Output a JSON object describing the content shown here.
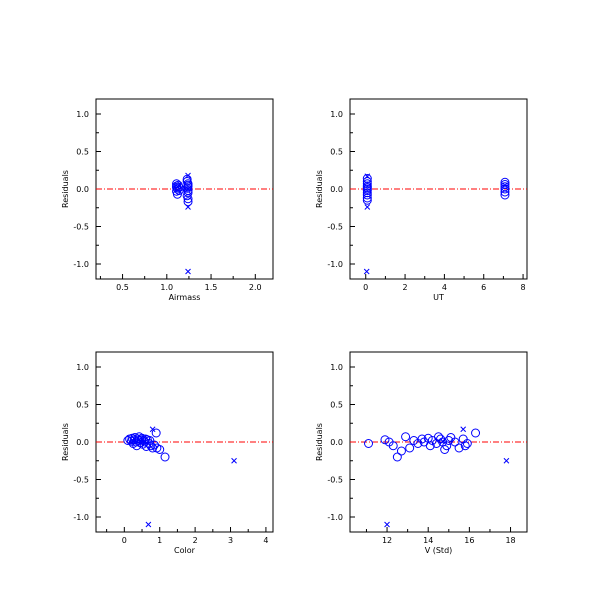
{
  "colors": {
    "axis": "#000000",
    "points": "#0000ff",
    "zero_line": "#ff0000",
    "background": "#ffffff"
  },
  "chart_data": [
    {
      "type": "scatter",
      "xlabel": "Airmass",
      "ylabel": "Residuals",
      "xlim": [
        0.2,
        2.2
      ],
      "ylim": [
        -1.2,
        1.2
      ],
      "xticks": [
        0.5,
        1.0,
        1.5,
        2.0
      ],
      "xtick_labels": [
        "0.5",
        "1.0",
        "1.5",
        "2.0"
      ],
      "yticks": [
        -1.0,
        -0.5,
        0.0,
        0.5,
        1.0
      ],
      "ytick_labels": [
        "-1.0",
        "-0.5",
        "0.0",
        "0.5",
        "1.0"
      ],
      "reference_line_y": 0.0,
      "series": [
        {
          "marker": "circle",
          "points": [
            [
              1.11,
              0.07
            ],
            [
              1.11,
              0.04
            ],
            [
              1.11,
              0.02
            ],
            [
              1.12,
              0.0
            ],
            [
              1.11,
              -0.03
            ],
            [
              1.12,
              -0.07
            ],
            [
              1.13,
              0.05
            ],
            [
              1.14,
              0.02
            ],
            [
              1.14,
              -0.02
            ],
            [
              1.23,
              0.13
            ],
            [
              1.23,
              0.1
            ],
            [
              1.24,
              0.07
            ],
            [
              1.24,
              0.05
            ],
            [
              1.24,
              0.03
            ],
            [
              1.23,
              0.01
            ],
            [
              1.24,
              -0.02
            ],
            [
              1.24,
              -0.05
            ],
            [
              1.23,
              -0.09
            ],
            [
              1.24,
              -0.13
            ],
            [
              1.24,
              -0.17
            ]
          ]
        },
        {
          "marker": "x",
          "points": [
            [
              1.24,
              0.18
            ],
            [
              1.24,
              -0.24
            ],
            [
              1.24,
              -1.1
            ],
            [
              1.12,
              0.03
            ],
            [
              1.24,
              0.0
            ]
          ]
        }
      ]
    },
    {
      "type": "scatter",
      "xlabel": "UT",
      "ylabel": "Residuals",
      "xlim": [
        -0.8,
        8.2
      ],
      "ylim": [
        -1.2,
        1.2
      ],
      "xticks": [
        0,
        2,
        4,
        6,
        8
      ],
      "xtick_labels": [
        "0",
        "2",
        "4",
        "6",
        "8"
      ],
      "yticks": [
        -1.0,
        -0.5,
        0.0,
        0.5,
        1.0
      ],
      "ytick_labels": [
        "-1.0",
        "-0.5",
        "0.0",
        "0.5",
        "1.0"
      ],
      "reference_line_y": 0.0,
      "series": [
        {
          "marker": "circle",
          "points": [
            [
              0.08,
              0.14
            ],
            [
              0.08,
              0.1
            ],
            [
              0.08,
              0.07
            ],
            [
              0.08,
              0.04
            ],
            [
              0.08,
              0.02
            ],
            [
              0.08,
              0.0
            ],
            [
              0.08,
              -0.02
            ],
            [
              0.08,
              -0.05
            ],
            [
              0.08,
              -0.08
            ],
            [
              0.08,
              -0.12
            ],
            [
              0.08,
              -0.15
            ],
            [
              7.08,
              0.09
            ],
            [
              7.08,
              0.06
            ],
            [
              7.08,
              0.03
            ],
            [
              7.08,
              0.0
            ],
            [
              7.08,
              -0.04
            ],
            [
              7.08,
              -0.08
            ]
          ]
        },
        {
          "marker": "x",
          "points": [
            [
              0.08,
              -0.24
            ],
            [
              0.08,
              0.17
            ],
            [
              0.05,
              -1.1
            ],
            [
              7.08,
              0.05
            ]
          ]
        }
      ]
    },
    {
      "type": "scatter",
      "xlabel": "Color",
      "ylabel": "Residuals",
      "xlim": [
        -0.8,
        4.2
      ],
      "ylim": [
        -1.2,
        1.2
      ],
      "xticks": [
        0,
        1,
        2,
        3,
        4
      ],
      "xtick_labels": [
        "0",
        "1",
        "2",
        "3",
        "4"
      ],
      "yticks": [
        -1.0,
        -0.5,
        0.0,
        0.5,
        1.0
      ],
      "ytick_labels": [
        "-1.0",
        "-0.5",
        "0.0",
        "0.5",
        "1.0"
      ],
      "reference_line_y": 0.0,
      "series": [
        {
          "marker": "circle",
          "points": [
            [
              0.1,
              0.02
            ],
            [
              0.15,
              0.04
            ],
            [
              0.2,
              0.01
            ],
            [
              0.22,
              0.05
            ],
            [
              0.25,
              -0.02
            ],
            [
              0.28,
              0.03
            ],
            [
              0.3,
              0.06
            ],
            [
              0.33,
              0.0
            ],
            [
              0.35,
              -0.05
            ],
            [
              0.38,
              0.04
            ],
            [
              0.4,
              0.02
            ],
            [
              0.42,
              0.07
            ],
            [
              0.45,
              -0.01
            ],
            [
              0.48,
              0.03
            ],
            [
              0.5,
              0.05
            ],
            [
              0.52,
              -0.03
            ],
            [
              0.55,
              0.02
            ],
            [
              0.58,
              0.0
            ],
            [
              0.6,
              0.04
            ],
            [
              0.62,
              -0.06
            ],
            [
              0.65,
              0.03
            ],
            [
              0.7,
              -0.02
            ],
            [
              0.72,
              0.02
            ],
            [
              0.75,
              -0.05
            ],
            [
              0.8,
              -0.08
            ],
            [
              0.85,
              -0.04
            ],
            [
              0.9,
              0.12
            ],
            [
              0.92,
              -0.08
            ],
            [
              1.0,
              -0.1
            ],
            [
              1.15,
              -0.2
            ]
          ]
        },
        {
          "marker": "x",
          "points": [
            [
              0.8,
              0.17
            ],
            [
              0.68,
              -1.1
            ],
            [
              3.1,
              -0.25
            ],
            [
              0.25,
              0.0
            ],
            [
              0.5,
              0.0
            ]
          ]
        }
      ]
    },
    {
      "type": "scatter",
      "xlabel": "V (Std)",
      "ylabel": "Residuals",
      "xlim": [
        10.2,
        18.8
      ],
      "ylim": [
        -1.2,
        1.2
      ],
      "xticks": [
        12,
        14,
        16,
        18
      ],
      "xtick_labels": [
        "12",
        "14",
        "16",
        "18"
      ],
      "yticks": [
        -1.0,
        -0.5,
        0.0,
        0.5,
        1.0
      ],
      "ytick_labels": [
        "-1.0",
        "-0.5",
        "0.0",
        "0.5",
        "1.0"
      ],
      "reference_line_y": 0.0,
      "series": [
        {
          "marker": "circle",
          "points": [
            [
              11.1,
              -0.02
            ],
            [
              11.9,
              0.03
            ],
            [
              12.1,
              0.0
            ],
            [
              12.3,
              -0.05
            ],
            [
              12.5,
              -0.2
            ],
            [
              12.7,
              -0.12
            ],
            [
              12.9,
              0.07
            ],
            [
              13.1,
              -0.08
            ],
            [
              13.3,
              0.02
            ],
            [
              13.5,
              -0.02
            ],
            [
              13.7,
              0.04
            ],
            [
              13.8,
              0.0
            ],
            [
              14.0,
              0.05
            ],
            [
              14.1,
              -0.05
            ],
            [
              14.2,
              0.02
            ],
            [
              14.4,
              -0.02
            ],
            [
              14.5,
              0.07
            ],
            [
              14.6,
              0.04
            ],
            [
              14.7,
              0.0
            ],
            [
              14.8,
              -0.1
            ],
            [
              14.9,
              -0.05
            ],
            [
              15.0,
              0.02
            ],
            [
              15.1,
              0.06
            ],
            [
              15.3,
              0.0
            ],
            [
              15.5,
              -0.08
            ],
            [
              15.7,
              0.04
            ],
            [
              15.8,
              -0.05
            ],
            [
              15.9,
              -0.02
            ],
            [
              16.3,
              0.12
            ]
          ]
        },
        {
          "marker": "x",
          "points": [
            [
              15.7,
              0.17
            ],
            [
              12.0,
              -1.1
            ],
            [
              17.8,
              -0.25
            ],
            [
              14.7,
              0.01
            ]
          ]
        }
      ]
    }
  ]
}
